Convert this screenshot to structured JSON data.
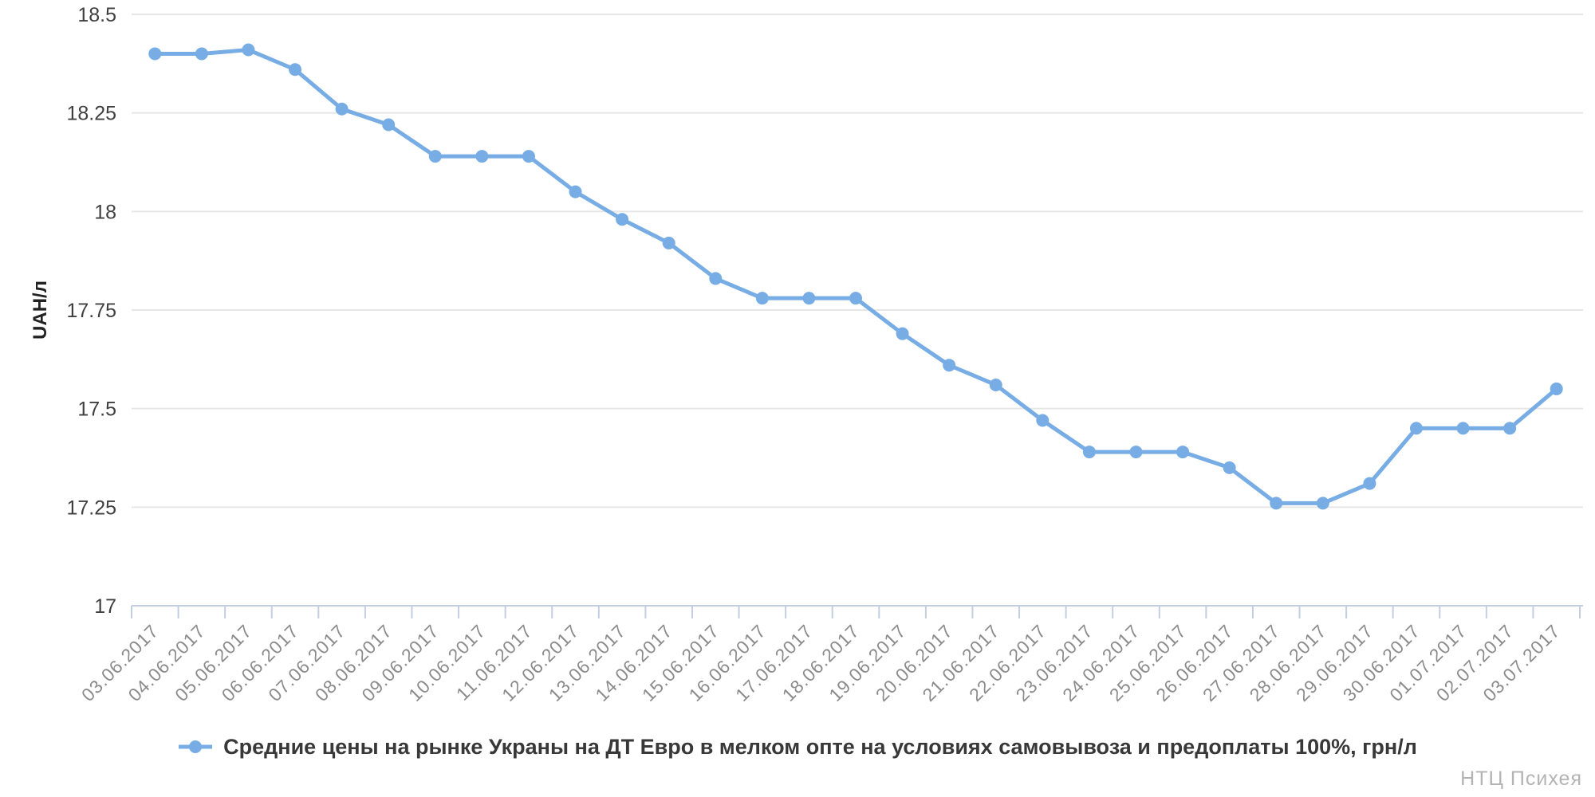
{
  "watermark": "НТЦ Психея",
  "legend": {
    "label": "Средние цены на рынке Украны на ДТ Евро в мелком опте на условиях самовывоза и предоплаты 100%, грн/л"
  },
  "chart_data": {
    "type": "line",
    "title": "",
    "ylabel": "UAH/л",
    "xlabel": "",
    "ylim": [
      17,
      18.5
    ],
    "ytick_step": 0.25,
    "yticks": [
      18.5,
      18.25,
      18,
      17.75,
      17.5,
      17.25,
      17
    ],
    "ytick_labels": [
      "18.5",
      "18.25",
      "18",
      "17.75",
      "17.5",
      "17.25",
      "17"
    ],
    "grid": true,
    "legend_position": "bottom",
    "marker": "circle",
    "categories": [
      "03.06.2017",
      "04.06.2017",
      "05.06.2017",
      "06.06.2017",
      "07.06.2017",
      "08.06.2017",
      "09.06.2017",
      "10.06.2017",
      "11.06.2017",
      "12.06.2017",
      "13.06.2017",
      "14.06.2017",
      "15.06.2017",
      "16.06.2017",
      "17.06.2017",
      "18.06.2017",
      "19.06.2017",
      "20.06.2017",
      "21.06.2017",
      "22.06.2017",
      "23.06.2017",
      "24.06.2017",
      "25.06.2017",
      "26.06.2017",
      "27.06.2017",
      "28.06.2017",
      "29.06.2017",
      "30.06.2017",
      "01.07.2017",
      "02.07.2017",
      "03.07.2017"
    ],
    "series": [
      {
        "name": "Средние цены на рынке Украны на ДТ Евро в мелком опте на условиях самовывоза и предоплаты 100%, грн/л",
        "values": [
          18.4,
          18.4,
          18.41,
          18.36,
          18.26,
          18.22,
          18.14,
          18.14,
          18.14,
          18.05,
          17.98,
          17.92,
          17.83,
          17.78,
          17.78,
          17.78,
          17.69,
          17.61,
          17.56,
          17.47,
          17.39,
          17.39,
          17.39,
          17.35,
          17.26,
          17.26,
          17.31,
          17.45,
          17.45,
          17.45,
          17.55
        ]
      }
    ],
    "colors": {
      "line": "#77ade4",
      "grid": "#e6e6e6",
      "axis": "#c3cfe1",
      "x_tick_label": "#8b8b8b",
      "y_tick_label": "#3f3f3f",
      "y_axis_title": "#222222",
      "legend_text": "#383838",
      "watermark": "#b3b3b3"
    }
  }
}
